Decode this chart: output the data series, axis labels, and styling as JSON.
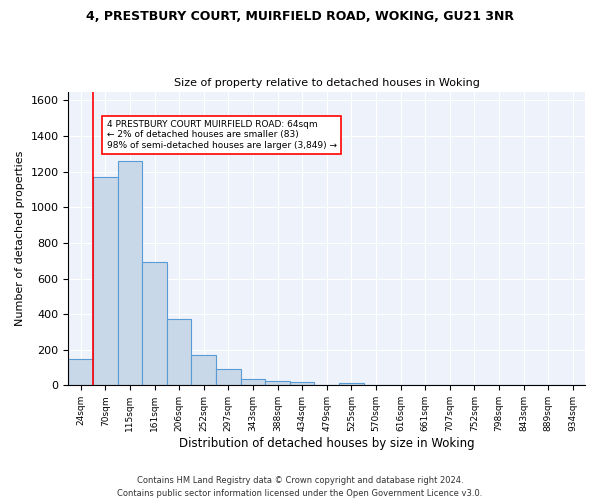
{
  "title1": "4, PRESTBURY COURT, MUIRFIELD ROAD, WOKING, GU21 3NR",
  "title2": "Size of property relative to detached houses in Woking",
  "xlabel": "Distribution of detached houses by size in Woking",
  "ylabel": "Number of detached properties",
  "bar_color": "#c8d8e8",
  "bar_edge_color": "#5b9bd5",
  "categories": [
    "24sqm",
    "70sqm",
    "115sqm",
    "161sqm",
    "206sqm",
    "252sqm",
    "297sqm",
    "343sqm",
    "388sqm",
    "434sqm",
    "479sqm",
    "525sqm",
    "570sqm",
    "616sqm",
    "661sqm",
    "707sqm",
    "752sqm",
    "798sqm",
    "843sqm",
    "889sqm",
    "934sqm"
  ],
  "values": [
    150,
    1170,
    1260,
    690,
    375,
    170,
    90,
    35,
    25,
    20,
    0,
    15,
    0,
    0,
    0,
    0,
    0,
    0,
    0,
    0,
    0
  ],
  "annotation_text": "4 PRESTBURY COURT MUIRFIELD ROAD: 64sqm\n← 2% of detached houses are smaller (83)\n98% of semi-detached houses are larger (3,849) →",
  "vline_x": 0.5,
  "ylim": [
    0,
    1650
  ],
  "footer": "Contains HM Land Registry data © Crown copyright and database right 2024.\nContains public sector information licensed under the Open Government Licence v3.0.",
  "background_color": "#eef2fb"
}
